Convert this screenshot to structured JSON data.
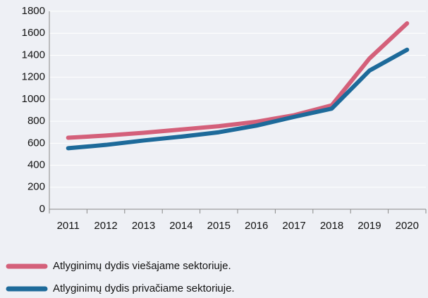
{
  "chart_data": {
    "type": "line",
    "categories": [
      "2011",
      "2012",
      "2013",
      "2014",
      "2015",
      "2016",
      "2017",
      "2018",
      "2019",
      "2020"
    ],
    "series": [
      {
        "name": "Atlyginimų dydis viešajame sektoriuje.",
        "color": "#d4607a",
        "values": [
          650,
          670,
          695,
          725,
          755,
          795,
          855,
          945,
          1370,
          1690
        ]
      },
      {
        "name": "Atlyginimų dydis privačiame sektoriuje.",
        "color": "#1d6a9a",
        "values": [
          555,
          585,
          625,
          660,
          700,
          760,
          840,
          915,
          1260,
          1450
        ]
      }
    ],
    "ylim": [
      0,
      1800
    ],
    "yticks": [
      0,
      200,
      400,
      600,
      800,
      1000,
      1200,
      1400,
      1600,
      1800
    ],
    "grid": true
  }
}
